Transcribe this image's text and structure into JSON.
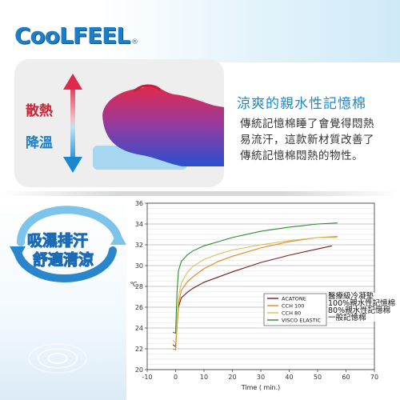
{
  "brand": {
    "logo_text": "CooLFEEL",
    "registered": "®"
  },
  "labels": {
    "heat": "散熱",
    "cool": "降溫"
  },
  "headline": {
    "title": "涼爽的親水性記憶棉"
  },
  "description": {
    "lines": [
      "傳統記憶棉睡了會覺得悶熱",
      "易流汗，這款新材質改善了",
      "傳統記憶棉悶熱的物性。"
    ]
  },
  "slogan": {
    "line1": "吸濕排汗",
    "line2": "舒適清涼"
  },
  "colors": {
    "brand_blue": "#1a7fc8",
    "heat_red": "#cc2233",
    "acatone": "#7b1b1b",
    "cch100": "#e08a1e",
    "cch80": "#d6c060",
    "visco": "#2b8a2b"
  },
  "chart_data": {
    "type": "line",
    "xlabel": "Time ( min.)",
    "ylabel": "℃",
    "xlim": [
      -10,
      70
    ],
    "ylim": [
      20,
      36
    ],
    "xticks": [
      -10,
      0,
      10,
      20,
      30,
      40,
      50,
      60,
      70
    ],
    "yticks": [
      20,
      22,
      24,
      26,
      28,
      30,
      32,
      34,
      36
    ],
    "grid": true,
    "legend_position": "bottom-right",
    "series": [
      {
        "name": "ACATONE",
        "label_zh": "醫療級冷凝墊",
        "color": "#7b1b1b",
        "x": [
          -1,
          0,
          0.5,
          1,
          2,
          4,
          6,
          10,
          15,
          20,
          30,
          40,
          50,
          55
        ],
        "y": [
          22.4,
          22.2,
          24.5,
          26.0,
          26.9,
          27.4,
          27.8,
          28.4,
          28.9,
          29.4,
          30.3,
          31.0,
          31.6,
          31.9
        ]
      },
      {
        "name": "CCH 100",
        "label_zh": "100%親水性記憶棉",
        "color": "#e08a1e",
        "x": [
          -1,
          0,
          0.5,
          1,
          2,
          4,
          6,
          10,
          15,
          20,
          30,
          40,
          50,
          57
        ],
        "y": [
          22.0,
          21.9,
          24.0,
          26.3,
          27.6,
          28.4,
          28.9,
          29.7,
          30.4,
          30.9,
          31.7,
          32.3,
          32.7,
          32.8
        ]
      },
      {
        "name": "CCH 80",
        "label_zh": "80%親水性記憶棉",
        "color": "#d6c060",
        "x": [
          -1,
          0,
          0.5,
          1,
          2,
          4,
          6,
          10,
          15,
          20,
          30,
          40,
          50,
          57
        ],
        "y": [
          22.8,
          22.6,
          24.8,
          27.0,
          28.3,
          29.3,
          29.9,
          30.6,
          31.1,
          31.5,
          32.0,
          32.4,
          32.7,
          32.7
        ]
      },
      {
        "name": "VISCO ELASTIC",
        "label_zh": "一般記憶棉",
        "color": "#2b8a2b",
        "x": [
          -1,
          0,
          0.5,
          1,
          2,
          4,
          6,
          10,
          15,
          20,
          30,
          40,
          50,
          57
        ],
        "y": [
          23.6,
          23.5,
          27.5,
          29.5,
          30.4,
          31.0,
          31.4,
          31.9,
          32.3,
          32.7,
          33.3,
          33.7,
          34.0,
          34.1
        ]
      }
    ]
  }
}
